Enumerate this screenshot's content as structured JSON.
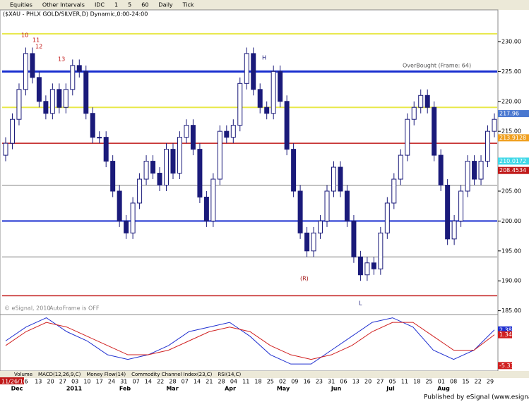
{
  "toolbar": [
    "Equities",
    "Other Intervals",
    "IDC",
    "1",
    "5",
    "60",
    "Daily",
    "Tick"
  ],
  "chart_data": {
    "type": "candlestick",
    "title": "($XAU - PHLX GOLD/SILVER,D) Dynamic,0:00-24:00",
    "open": [
      211,
      213,
      217,
      222,
      228,
      224,
      220,
      218,
      222,
      219,
      222,
      226,
      225,
      218,
      214,
      214,
      210,
      205,
      200,
      198,
      203,
      207,
      210,
      208,
      206,
      212,
      208,
      214,
      216,
      212,
      204,
      200,
      207,
      215,
      214,
      216,
      223,
      228,
      222,
      219,
      218,
      225,
      220,
      212,
      205,
      198,
      195,
      198,
      200,
      205,
      209,
      205,
      200,
      194,
      191,
      193,
      192,
      198,
      203,
      207,
      211,
      217,
      219,
      221,
      219,
      211,
      206,
      197,
      200,
      205,
      210,
      207,
      210,
      215
    ],
    "high": [
      214,
      218,
      223,
      229,
      229,
      225,
      221,
      223,
      223,
      223,
      227,
      227,
      226,
      219,
      215,
      215,
      211,
      206,
      201,
      204,
      208,
      211,
      211,
      209,
      213,
      213,
      215,
      217,
      217,
      213,
      205,
      208,
      216,
      216,
      217,
      224,
      229,
      229,
      223,
      220,
      226,
      226,
      221,
      213,
      206,
      199,
      199,
      201,
      206,
      210,
      210,
      206,
      201,
      195,
      194,
      194,
      199,
      204,
      208,
      212,
      218,
      220,
      222,
      222,
      220,
      212,
      207,
      201,
      206,
      211,
      211,
      211,
      216,
      218
    ],
    "low": [
      210,
      212,
      216,
      221,
      223,
      219,
      217,
      217,
      218,
      218,
      221,
      224,
      217,
      213,
      213,
      209,
      204,
      199,
      197,
      197,
      202,
      206,
      207,
      205,
      205,
      207,
      207,
      213,
      211,
      203,
      199,
      199,
      206,
      213,
      213,
      215,
      222,
      221,
      218,
      217,
      217,
      219,
      211,
      204,
      197,
      194,
      194,
      197,
      199,
      204,
      204,
      199,
      193,
      190,
      190,
      191,
      191,
      197,
      202,
      206,
      210,
      216,
      218,
      218,
      210,
      205,
      196,
      196,
      199,
      204,
      206,
      206,
      209,
      214
    ],
    "close": [
      213,
      217,
      222,
      228,
      224,
      220,
      218,
      222,
      219,
      222,
      226,
      225,
      218,
      214,
      214,
      210,
      205,
      200,
      198,
      203,
      207,
      210,
      208,
      206,
      212,
      208,
      214,
      216,
      212,
      204,
      200,
      207,
      215,
      214,
      216,
      223,
      228,
      222,
      219,
      218,
      225,
      220,
      212,
      205,
      198,
      195,
      198,
      200,
      205,
      209,
      205,
      200,
      194,
      191,
      193,
      192,
      198,
      203,
      207,
      211,
      217,
      219,
      221,
      219,
      211,
      206,
      197,
      200,
      205,
      210,
      207,
      210,
      215,
      217
    ],
    "up_color": "#ffffff",
    "down_color": "#1a1a7a",
    "ylim": [
      184.6,
      235.3
    ],
    "yticks": [
      {
        "value": 185,
        "label": "185.00"
      },
      {
        "value": 190,
        "label": "190.00"
      },
      {
        "value": 195,
        "label": "195.00"
      },
      {
        "value": 200,
        "label": "200.00"
      },
      {
        "value": 205,
        "label": "205.00"
      },
      {
        "value": 210,
        "label": "210.00"
      },
      {
        "value": 215,
        "label": "215.00"
      },
      {
        "value": 220,
        "label": "220.00"
      },
      {
        "value": 225,
        "label": "225.00"
      },
      {
        "value": 230,
        "label": "230.00"
      }
    ],
    "hlines": [
      {
        "value": 231.3,
        "color": "#e8e84a",
        "width": 2
      },
      {
        "value": 225,
        "color": "#1a2fd0",
        "width": 3
      },
      {
        "value": 219,
        "color": "#e8e84a",
        "width": 2
      },
      {
        "value": 213,
        "color": "#c01818",
        "width": 1.5
      },
      {
        "value": 206,
        "color": "#808080",
        "width": 1
      },
      {
        "value": 200,
        "color": "#1a2fd0",
        "width": 2
      },
      {
        "value": 194,
        "color": "#808080",
        "width": 1
      },
      {
        "value": 187.5,
        "color": "#c01818",
        "width": 1.5
      }
    ],
    "axis_markers": [
      {
        "value": 217.96,
        "color": "#4a78d0"
      },
      {
        "value": 213.9128,
        "color": "#f0a020"
      },
      {
        "value": 210.0172,
        "color": "#40d8e8"
      },
      {
        "value": 208.4534,
        "color": "#c01818"
      }
    ],
    "annotations": [
      "H",
      "L",
      "(R)",
      "OverBought (Frame: 64)",
      "AutoFrame is OFF",
      "© eSignal, 2010",
      "10",
      "11",
      "12",
      "13"
    ],
    "date_labels": [
      "11/26/10",
      "6",
      "13",
      "20",
      "27",
      "03",
      "10",
      "17",
      "24",
      "31",
      "07",
      "14",
      "22",
      "28",
      "07",
      "14",
      "21",
      "28",
      "04",
      "11",
      "18",
      "25",
      "02",
      "09",
      "16",
      "23",
      "31",
      "06",
      "13",
      "20",
      "27",
      "05",
      "11",
      "18",
      "25",
      "01",
      "08",
      "15",
      "22",
      "29"
    ],
    "month_labels": [
      "Dec",
      "2011",
      "Feb",
      "Mar",
      "Apr",
      "May",
      "Jun",
      "Jul",
      "Aug"
    ],
    "macd": {
      "ylim": [
        -6.5,
        5.7
      ],
      "series": [
        {
          "name": "MACD",
          "color": "#2030d0",
          "values": [
            0,
            3,
            5,
            2,
            0,
            -3,
            -4,
            -3,
            -1,
            2,
            3,
            4,
            1,
            -3,
            -5,
            -5,
            -2,
            1,
            4,
            5,
            3,
            -2,
            -4,
            -2,
            2.38
          ]
        },
        {
          "name": "Signal",
          "color": "#d02020",
          "values": [
            -1,
            2,
            4,
            3,
            1,
            -1,
            -3,
            -3,
            -2,
            0,
            2,
            3,
            2,
            -1,
            -3,
            -4,
            -3,
            -1,
            2,
            4,
            4,
            1,
            -2,
            -2,
            1.34
          ]
        }
      ],
      "axis_labels": [
        2.38,
        1.34,
        -5.33
      ]
    },
    "tabs": [
      "Volume",
      "MACD(12,26,9,C)",
      "Money Flow(14)",
      "Commodity Channel Index(23,C)",
      "RSI(14,C)"
    ],
    "footer": "Published by eSignal (www.esignal.com)"
  }
}
